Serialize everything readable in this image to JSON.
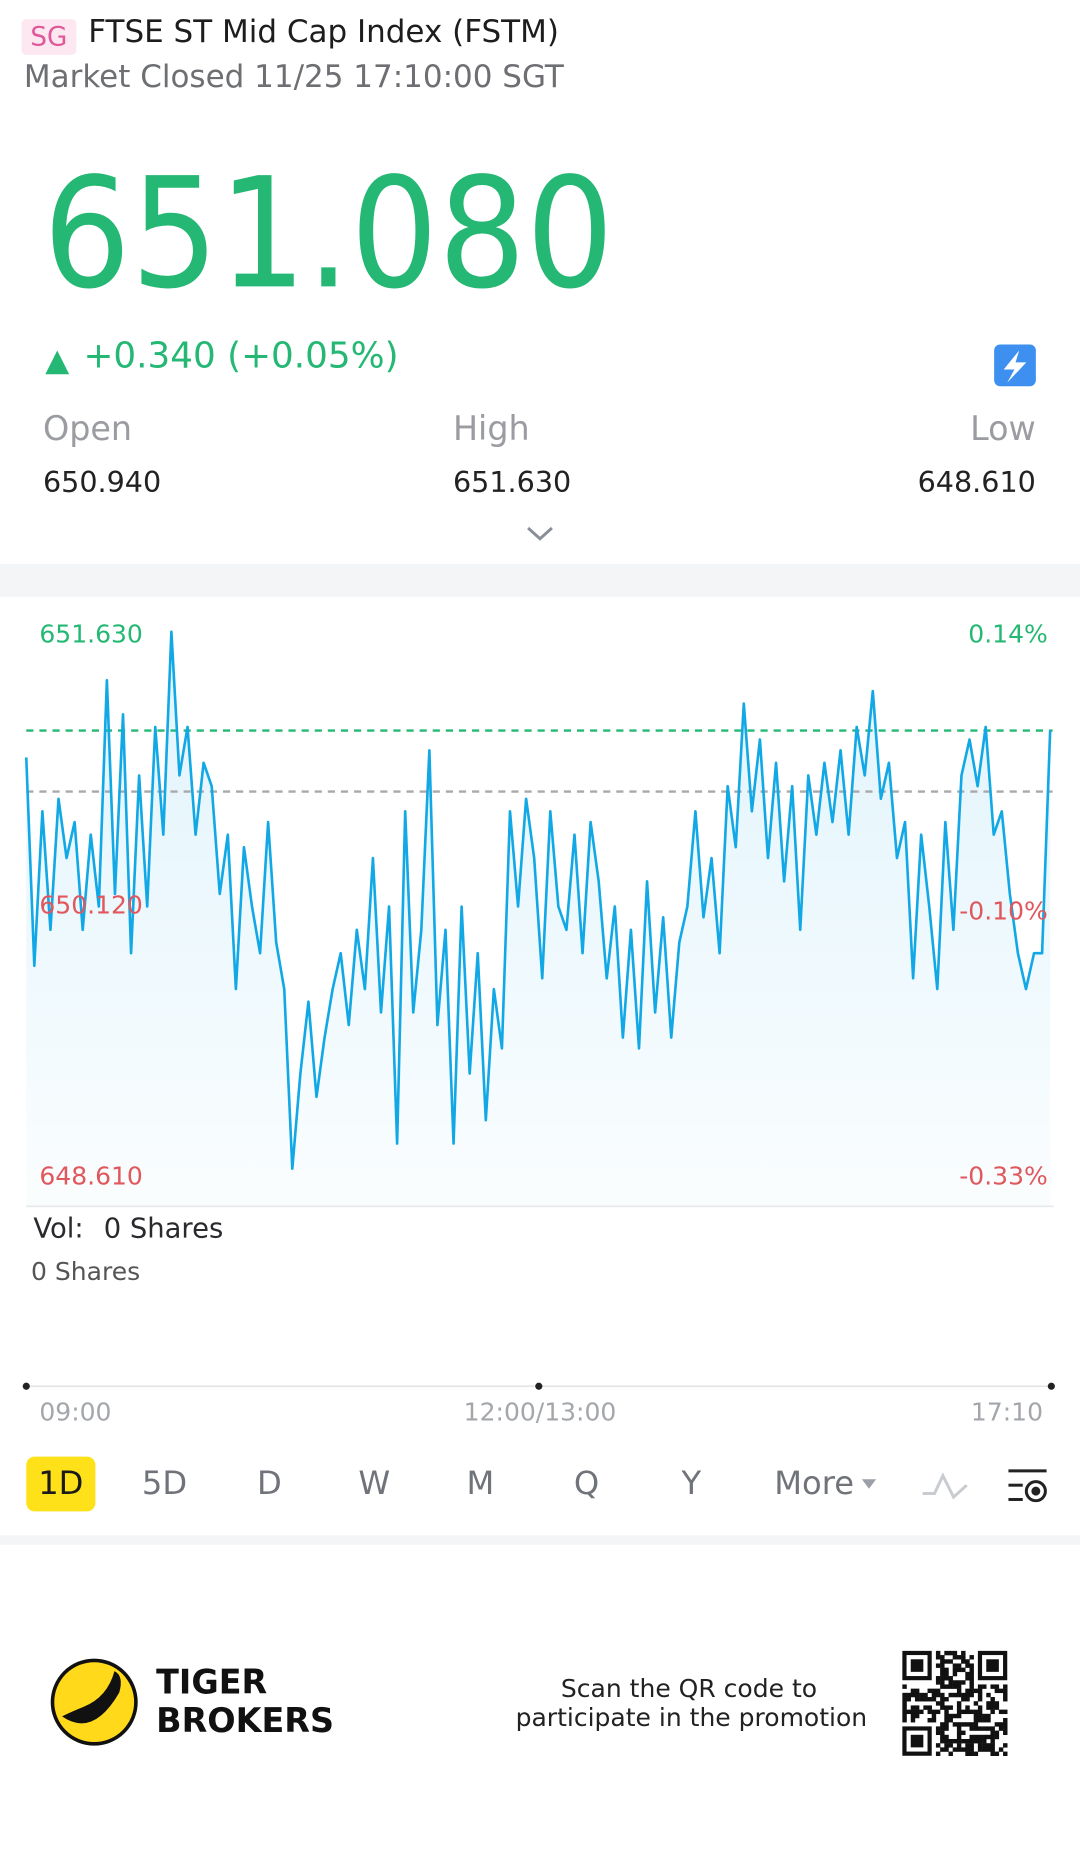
{
  "header": {
    "badge": "SG",
    "title": "FTSE ST Mid Cap Index (FSTM)",
    "status": "Market Closed 11/25 17:10:00 SGT"
  },
  "quote": {
    "price": "651.080",
    "change": "+0.340 (+0.05%)",
    "stats": [
      {
        "label": "Open",
        "value": "650.940"
      },
      {
        "label": "High",
        "value": "651.630"
      },
      {
        "label": "Low",
        "value": "648.610"
      }
    ]
  },
  "chart_data": {
    "type": "line",
    "color": "#12a8e6",
    "values": [
      650.93,
      649.77,
      650.63,
      649.97,
      650.7,
      650.37,
      650.57,
      649.97,
      650.5,
      650.1,
      651.36,
      650.17,
      651.17,
      649.84,
      650.83,
      650.1,
      651.1,
      650.5,
      651.63,
      650.83,
      651.1,
      650.5,
      650.9,
      650.77,
      650.17,
      650.5,
      649.64,
      650.43,
      650.1,
      649.84,
      650.57,
      649.9,
      649.64,
      648.64,
      649.17,
      649.57,
      649.04,
      649.37,
      649.64,
      649.84,
      649.44,
      649.97,
      649.64,
      650.37,
      649.51,
      650.1,
      648.78,
      650.63,
      649.51,
      649.97,
      650.97,
      649.44,
      649.97,
      648.78,
      650.1,
      649.17,
      649.84,
      648.91,
      649.64,
      649.31,
      650.63,
      650.1,
      650.7,
      650.37,
      649.7,
      650.63,
      650.1,
      649.97,
      650.5,
      649.84,
      650.57,
      650.24,
      649.7,
      650.1,
      649.37,
      649.97,
      649.31,
      650.24,
      649.51,
      650.04,
      649.37,
      649.9,
      650.1,
      650.63,
      650.04,
      650.37,
      649.84,
      650.77,
      650.43,
      651.23,
      650.63,
      651.03,
      650.37,
      650.9,
      650.24,
      650.77,
      649.97,
      650.83,
      650.5,
      650.9,
      650.57,
      650.97,
      650.5,
      651.1,
      650.83,
      651.3,
      650.7,
      650.9,
      650.37,
      650.57,
      649.7,
      650.5,
      650.1,
      649.64,
      650.57,
      649.97,
      650.83,
      651.03,
      650.77,
      651.1,
      650.5,
      650.63,
      650.17,
      649.84,
      649.64,
      649.84,
      649.84,
      651.08
    ],
    "ylim": [
      648.61,
      651.63
    ],
    "yticks": [
      {
        "value": 648.61,
        "label": "648.610"
      },
      {
        "value": 650.12,
        "label": "650.120"
      },
      {
        "value": 651.63,
        "label": "651.630"
      }
    ],
    "y2lim": [
      -0.33,
      0.14
    ],
    "y2ticks": [
      {
        "value": -0.33,
        "label": "-0.33%"
      },
      {
        "value": -0.1,
        "label": "-0.10%"
      },
      {
        "value": 0.14,
        "label": "0.14%"
      }
    ],
    "reference_lines": [
      {
        "value": 651.08,
        "color": "#25b874"
      },
      {
        "value": 650.74,
        "color": "#a9a9a9"
      }
    ],
    "xtick_labels": [
      "09:00",
      "12:00/13:00",
      "17:10"
    ],
    "volume": {
      "label": "Vol:",
      "value": "0 Shares",
      "axis_value": "0 Shares"
    }
  },
  "periods": [
    "1D",
    "5D",
    "D",
    "W",
    "M",
    "Q",
    "Y",
    "More"
  ],
  "active_period": 0,
  "footer": {
    "brand": [
      "TIGER",
      "BROKERS"
    ],
    "promo": [
      "Scan the QR code to",
      "participate in the promotion"
    ]
  }
}
